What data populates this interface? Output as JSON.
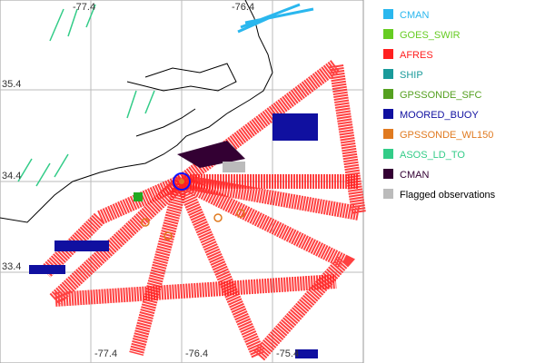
{
  "map": {
    "top_labels": [
      "-77.4",
      "-76.4"
    ],
    "bottom_labels": [
      "-77.4",
      "-76.4",
      "-75.4"
    ],
    "left_labels": [
      "35.4",
      "34.4",
      "33.4"
    ],
    "legend": [
      {
        "name": "CMAN",
        "color": "#2ab7ee"
      },
      {
        "name": "GOES_SWIR",
        "color": "#66cc22"
      },
      {
        "name": "AFRES",
        "color": "#ff2020"
      },
      {
        "name": "SHIP",
        "color": "#1a9a9a"
      },
      {
        "name": "GPSSONDE_SFC",
        "color": "#55a020"
      },
      {
        "name": "MOORED_BUOY",
        "color": "#1010a0"
      },
      {
        "name": "GPSSONDE_WL150",
        "color": "#e07a20"
      },
      {
        "name": "ASOS_LD_TO",
        "color": "#33cc88"
      },
      {
        "name": "CMAN",
        "color": "#330033"
      },
      {
        "name": "Flagged observations",
        "color": "#bbbbbb"
      }
    ]
  }
}
